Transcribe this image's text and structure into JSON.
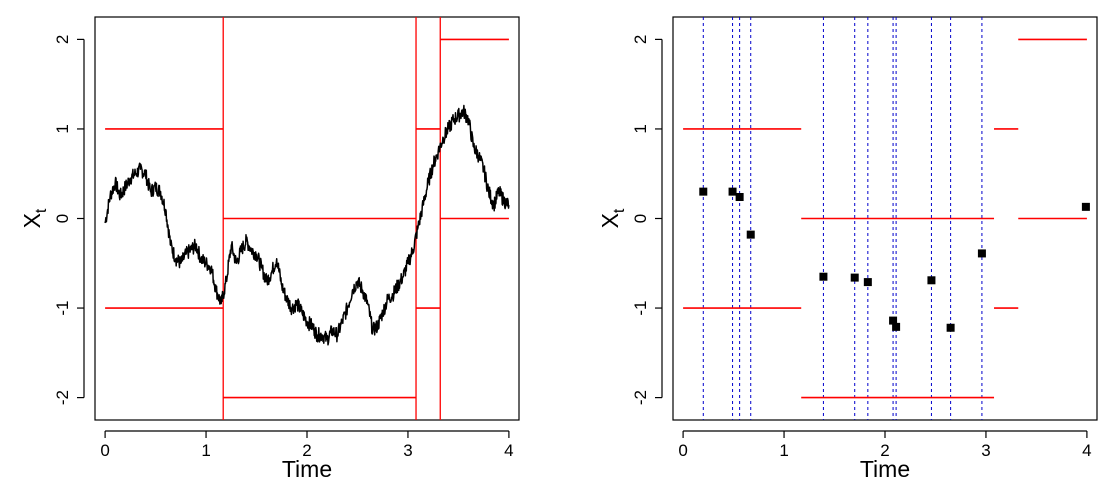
{
  "chart_data": [
    {
      "type": "line",
      "panel": "left",
      "xlabel": "Time",
      "ylabel": "X",
      "ylabel_subscript": "t",
      "xlim": [
        -0.1,
        4.1
      ],
      "ylim": [
        -2.25,
        2.25
      ],
      "xticks": [
        "0",
        "1",
        "2",
        "3",
        "4"
      ],
      "yticks": [
        "-2",
        "-1",
        "0",
        "1",
        "2"
      ],
      "path_color": "#000000",
      "level_color": "#ff0000",
      "path": {
        "x": [
          0.0,
          0.05,
          0.1,
          0.15,
          0.2,
          0.25,
          0.3,
          0.35,
          0.4,
          0.45,
          0.5,
          0.55,
          0.6,
          0.65,
          0.7,
          0.75,
          0.8,
          0.85,
          0.9,
          0.95,
          1.0,
          1.05,
          1.1,
          1.15,
          1.2,
          1.25,
          1.3,
          1.35,
          1.4,
          1.45,
          1.5,
          1.55,
          1.6,
          1.65,
          1.7,
          1.75,
          1.8,
          1.85,
          1.9,
          1.95,
          2.0,
          2.05,
          2.1,
          2.15,
          2.2,
          2.25,
          2.3,
          2.35,
          2.4,
          2.45,
          2.5,
          2.55,
          2.6,
          2.65,
          2.7,
          2.75,
          2.8,
          2.85,
          2.9,
          2.95,
          3.0,
          3.05,
          3.1,
          3.15,
          3.2,
          3.25,
          3.3,
          3.35,
          3.4,
          3.45,
          3.5,
          3.55,
          3.6,
          3.65,
          3.7,
          3.75,
          3.8,
          3.85,
          3.9,
          3.95,
          4.0
        ],
        "y": [
          -0.05,
          0.25,
          0.4,
          0.25,
          0.35,
          0.45,
          0.5,
          0.55,
          0.5,
          0.3,
          0.35,
          0.3,
          0.1,
          -0.3,
          -0.45,
          -0.5,
          -0.4,
          -0.35,
          -0.3,
          -0.45,
          -0.5,
          -0.55,
          -0.8,
          -0.95,
          -0.7,
          -0.3,
          -0.5,
          -0.35,
          -0.25,
          -0.35,
          -0.4,
          -0.55,
          -0.7,
          -0.6,
          -0.45,
          -0.75,
          -0.9,
          -1.0,
          -0.95,
          -1.05,
          -1.15,
          -1.2,
          -1.3,
          -1.3,
          -1.35,
          -1.25,
          -1.3,
          -1.15,
          -1.0,
          -0.8,
          -0.7,
          -0.8,
          -0.95,
          -1.25,
          -1.2,
          -1.05,
          -0.9,
          -0.85,
          -0.75,
          -0.65,
          -0.5,
          -0.35,
          -0.1,
          0.15,
          0.4,
          0.6,
          0.75,
          0.9,
          1.0,
          1.1,
          1.15,
          1.2,
          1.1,
          0.8,
          0.7,
          0.55,
          0.3,
          0.15,
          0.3,
          0.2,
          0.15
        ]
      },
      "verticals": [
        1.17,
        3.08,
        3.32
      ],
      "levels": [
        {
          "x": [
            0,
            1.17
          ],
          "y": [
            1,
            -1
          ]
        },
        {
          "x": [
            1.17,
            3.08
          ],
          "y": [
            0,
            -2
          ]
        },
        {
          "x": [
            3.08,
            3.32
          ],
          "y": [
            1,
            -1
          ]
        },
        {
          "x": [
            3.32,
            4.0
          ],
          "y": [
            2,
            0
          ]
        }
      ]
    },
    {
      "type": "scatter",
      "panel": "right",
      "xlabel": "Time",
      "ylabel": "X",
      "ylabel_subscript": "t",
      "xlim": [
        -0.1,
        4.1
      ],
      "ylim": [
        -2.25,
        2.25
      ],
      "xticks": [
        "0",
        "1",
        "2",
        "3",
        "4"
      ],
      "yticks": [
        "-2",
        "-1",
        "0",
        "1",
        "2"
      ],
      "point_color": "#000000",
      "level_color": "#ff0000",
      "vline_color": "#0000cc",
      "points": {
        "x": [
          0.2,
          0.49,
          0.56,
          0.67,
          1.39,
          1.7,
          1.83,
          2.08,
          2.11,
          2.46,
          2.65,
          2.96,
          3.99
        ],
        "y": [
          0.3,
          0.3,
          0.24,
          -0.18,
          -0.65,
          -0.66,
          -0.71,
          -1.14,
          -1.21,
          -0.69,
          -1.22,
          -0.39,
          0.13
        ]
      },
      "verticals": [
        0.2,
        0.49,
        0.56,
        0.67,
        1.39,
        1.7,
        1.83,
        2.08,
        2.11,
        2.46,
        2.65,
        2.96
      ],
      "levels": [
        {
          "x": [
            0,
            1.17
          ],
          "y": [
            1,
            -1
          ]
        },
        {
          "x": [
            1.17,
            3.08
          ],
          "y": [
            0,
            -2
          ]
        },
        {
          "x": [
            3.08,
            3.32
          ],
          "y": [
            1,
            -1
          ]
        },
        {
          "x": [
            3.32,
            4.0
          ],
          "y": [
            2,
            0
          ]
        }
      ]
    }
  ]
}
